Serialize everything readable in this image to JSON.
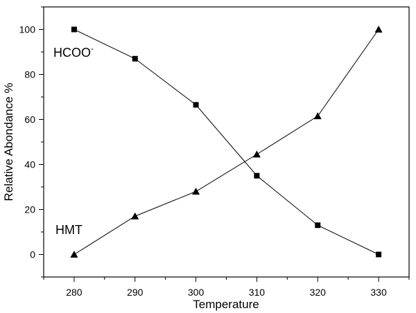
{
  "chart_data": {
    "type": "line",
    "xlabel": "Temperature",
    "ylabel": "Relative Abondance %",
    "xlim": [
      275,
      335
    ],
    "ylim": [
      -10,
      110
    ],
    "x_ticks": [
      280,
      290,
      300,
      310,
      320,
      330
    ],
    "y_ticks": [
      0,
      20,
      40,
      60,
      80,
      100
    ],
    "grid": false,
    "series": [
      {
        "name": "HCOO",
        "name_superscript": "-",
        "marker": "square",
        "x": [
          280,
          290,
          300,
          310,
          320,
          330
        ],
        "y": [
          100,
          87,
          66.5,
          35,
          13,
          0
        ]
      },
      {
        "name": "HMT",
        "marker": "triangle",
        "x": [
          280,
          290,
          300,
          310,
          320,
          330
        ],
        "y": [
          0,
          17,
          28,
          44.5,
          61.5,
          100
        ]
      }
    ]
  }
}
